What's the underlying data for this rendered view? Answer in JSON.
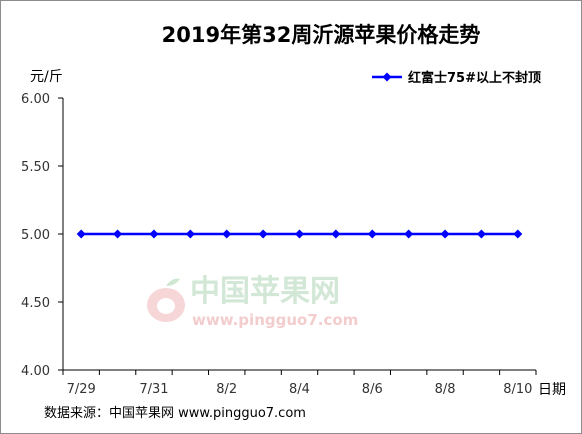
{
  "chart_data": {
    "type": "line",
    "title": "2019年第32周沂源苹果价格走势",
    "y_unit_label": "元/斤",
    "x_unit_label": "日期",
    "ylim": [
      4.0,
      6.0
    ],
    "y_ticks": [
      "4.00",
      "4.50",
      "5.00",
      "5.50",
      "6.00"
    ],
    "y_tick_values": [
      4.0,
      4.5,
      5.0,
      5.5,
      6.0
    ],
    "x_points": [
      "7/29",
      "7/30",
      "7/31",
      "8/1",
      "8/2",
      "8/3",
      "8/4",
      "8/5",
      "8/6",
      "8/7",
      "8/8",
      "8/9",
      "8/10"
    ],
    "x_tick_labels": [
      "7/29",
      "7/31",
      "8/2",
      "8/4",
      "8/6",
      "8/8",
      "8/10"
    ],
    "series": [
      {
        "name": "红富士75#以上不封顶",
        "color": "#0000ff",
        "values": [
          5.0,
          5.0,
          5.0,
          5.0,
          5.0,
          5.0,
          5.0,
          5.0,
          5.0,
          5.0,
          5.0,
          5.0,
          5.0
        ]
      }
    ],
    "legend_position": "top-right",
    "grid": false
  },
  "source_note": "数据来源：中国苹果网 www.pingguo7.com",
  "watermark": {
    "name": "中国苹果网",
    "url": "www.pingguo7.com"
  }
}
